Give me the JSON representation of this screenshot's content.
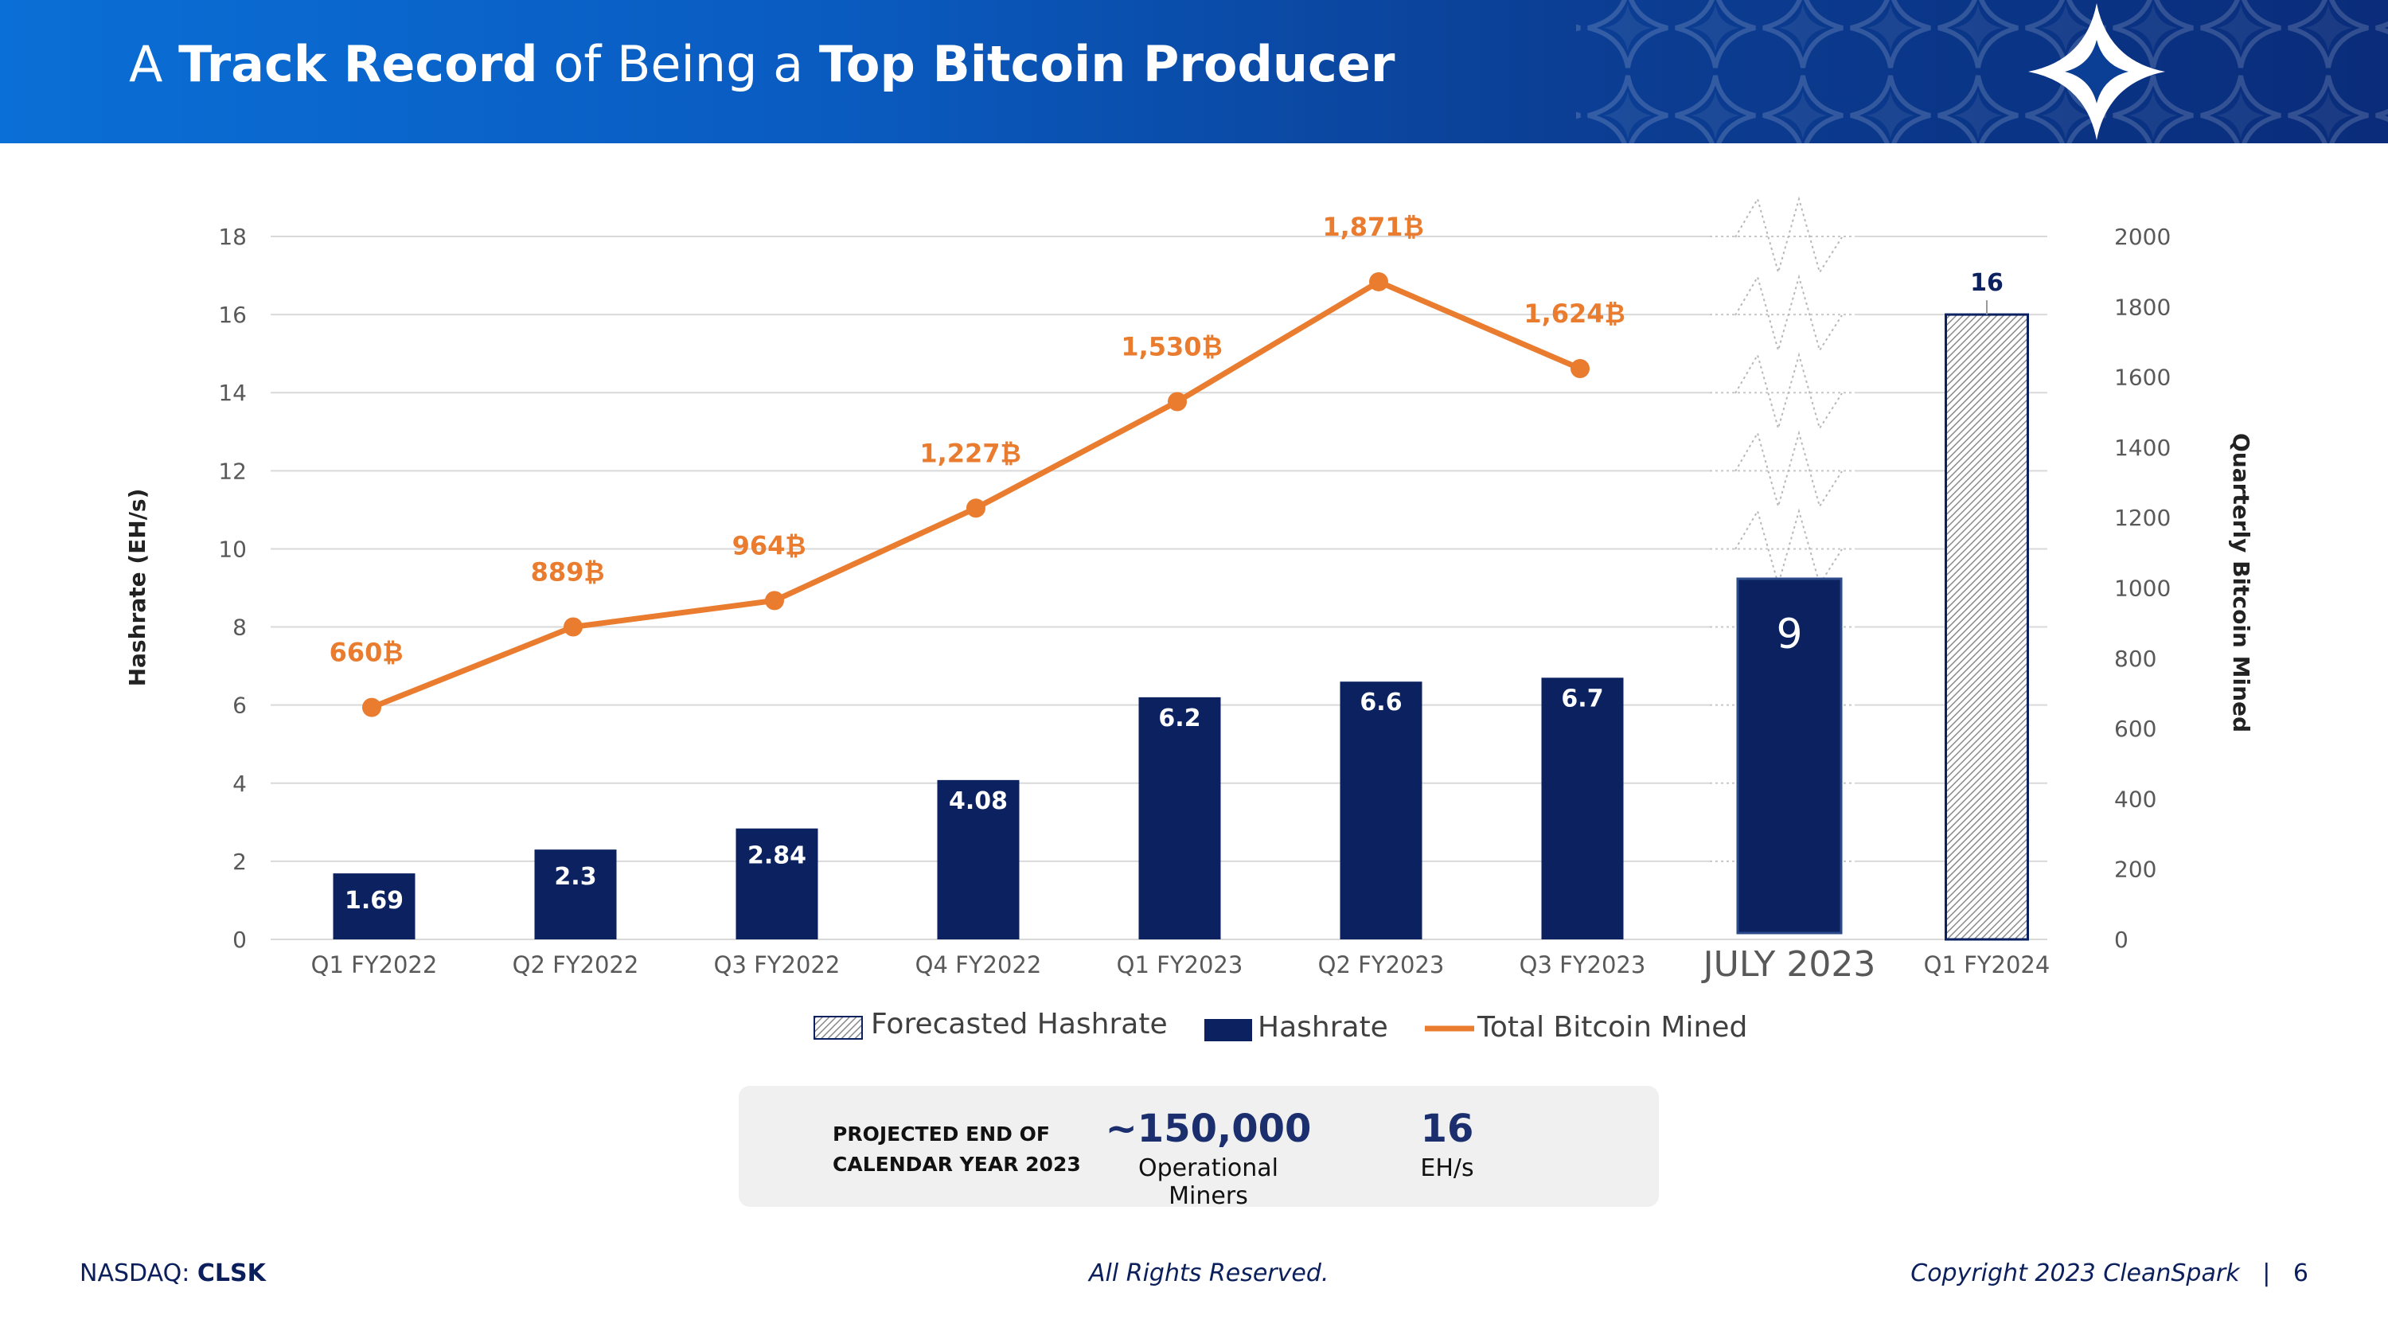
{
  "header": {
    "title_parts": [
      {
        "text": "A ",
        "bold": false
      },
      {
        "text": "Track Record",
        "bold": true
      },
      {
        "text": " of Being a ",
        "bold": false
      },
      {
        "text": "Top Bitcoin Producer",
        "bold": true
      }
    ]
  },
  "colors": {
    "bar": "#0b2160",
    "line": "#e97c2f",
    "forecast_outline": "#0b2160",
    "grid": "#d9d9d9",
    "axis_text": "#595959"
  },
  "chart_data": {
    "type": "bar",
    "categories": [
      "Q1 FY2022",
      "Q2 FY2022",
      "Q3 FY2022",
      "Q4 FY2022",
      "Q1 FY2023",
      "Q2 FY2023",
      "Q3 FY2023",
      "JULY 2023",
      "Q1 FY2024"
    ],
    "series": [
      {
        "name": "Hashrate",
        "type": "bar",
        "axis": "left",
        "values": [
          1.69,
          2.3,
          2.84,
          4.08,
          6.2,
          6.6,
          6.7,
          9,
          null
        ],
        "labels": [
          "1.69",
          "2.3",
          "2.84",
          "4.08",
          "6.2",
          "6.6",
          "6.7",
          "9",
          ""
        ]
      },
      {
        "name": "Forecasted Hashrate",
        "type": "bar",
        "axis": "left",
        "pattern": "hatched",
        "values": [
          null,
          null,
          null,
          null,
          null,
          null,
          null,
          null,
          16
        ],
        "labels": [
          "",
          "",
          "",
          "",
          "",
          "",
          "",
          "",
          "16"
        ]
      },
      {
        "name": "Total Bitcoin Mined",
        "type": "line",
        "axis": "right",
        "values": [
          660,
          889,
          964,
          1227,
          1530,
          1871,
          1624,
          null,
          null
        ],
        "labels": [
          "660₿",
          "889₿",
          "964₿",
          "1,227₿",
          "1,530₿",
          "1,871₿",
          "1,624₿",
          "",
          ""
        ]
      }
    ],
    "ylabel": "Hashrate (EH/s)",
    "y2label": "Quarterly Bitcoin Mined",
    "ylim": [
      0,
      18
    ],
    "y2lim": [
      0,
      2000
    ],
    "yticks": [
      "0",
      "2",
      "4",
      "6",
      "8",
      "10",
      "12",
      "14",
      "16",
      "18"
    ],
    "y2ticks": [
      "0",
      "200",
      "400",
      "600",
      "800",
      "1000",
      "1200",
      "1400",
      "1600",
      "1800",
      "2000"
    ],
    "grid": true,
    "axis_break": "JULY 2023",
    "legend_position": "bottom",
    "legend": [
      "Forecasted Hashrate",
      "Hashrate",
      "Total Bitcoin Mined"
    ]
  },
  "summary": {
    "label": "PROJECTED END OF\nCALENDAR YEAR 2023",
    "miners_value": "~150,000",
    "miners_caption": "Operational Miners",
    "hashrate_value": "16",
    "hashrate_caption": "EH/s"
  },
  "footer": {
    "exchange": "NASDAQ: ",
    "ticker": "CLSK",
    "rights": "All Rights Reserved.",
    "copyright": "Copyright 2023 CleanSpark",
    "separator": "|",
    "page": "6"
  }
}
